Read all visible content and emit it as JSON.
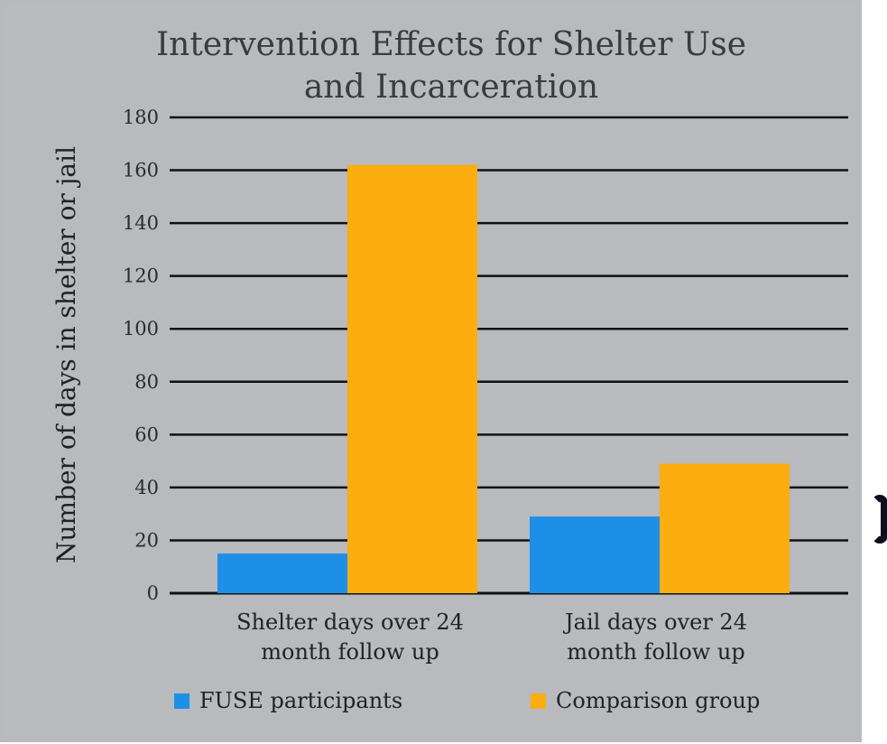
{
  "chart_data": {
    "type": "bar",
    "title_lines": [
      "Intervention Effects for Shelter Use",
      "and Incarceration"
    ],
    "ylabel": "Number of days in shelter or jail",
    "xlabel": "",
    "categories": [
      [
        "Shelter days over 24",
        "month follow up"
      ],
      [
        "Jail days over 24",
        "month follow up"
      ]
    ],
    "series": [
      {
        "name": "FUSE participants",
        "color": "#1e8fe6",
        "values": [
          15,
          29
        ]
      },
      {
        "name": "Comparison group",
        "color": "#fcad10",
        "values": [
          162,
          49
        ]
      }
    ],
    "ylim": [
      0,
      180
    ],
    "yticks": [
      0,
      20,
      40,
      60,
      80,
      100,
      120,
      140,
      160,
      180
    ],
    "grid": true,
    "legend_position": "bottom"
  }
}
